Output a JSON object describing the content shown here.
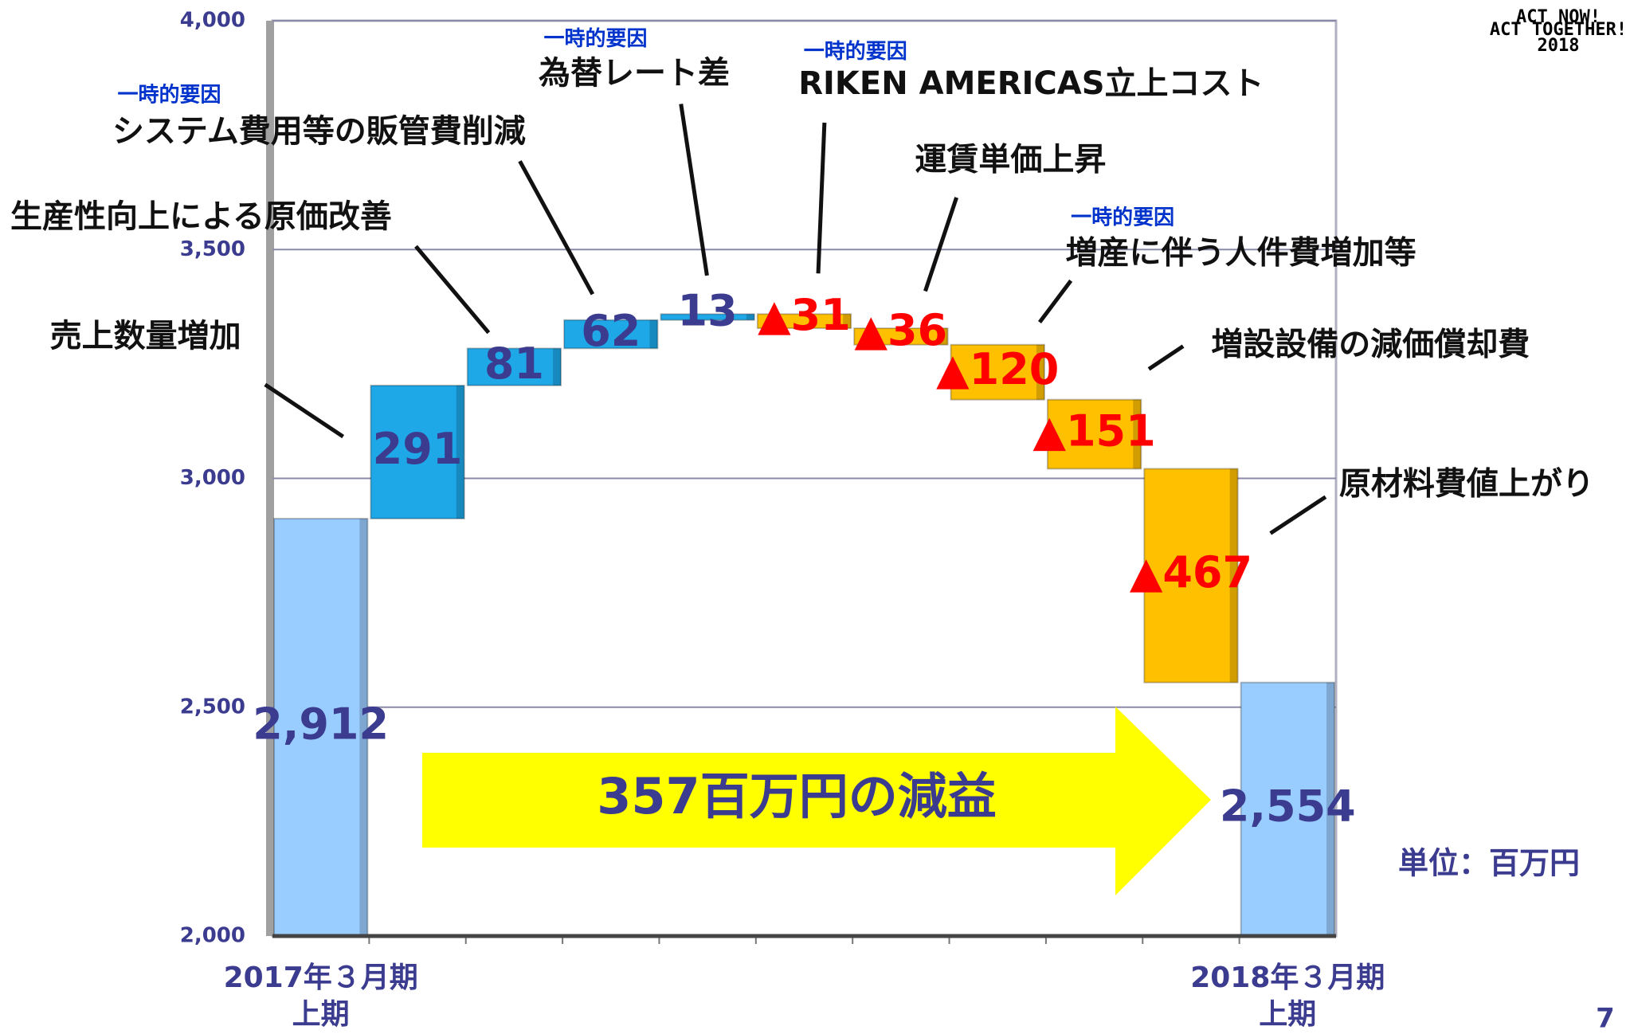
{
  "chart_data": {
    "type": "waterfall",
    "categories": [
      "2017年３月期\n上期",
      null,
      null,
      null,
      null,
      null,
      null,
      null,
      null,
      null,
      "2018年３月期\n上期"
    ],
    "measure": [
      "absolute",
      "relative",
      "relative",
      "relative",
      "relative",
      "relative",
      "relative",
      "relative",
      "relative",
      "relative",
      "absolute"
    ],
    "values": [
      2912,
      291,
      81,
      62,
      13,
      -31,
      -36,
      -120,
      -151,
      -467,
      2554
    ],
    "value_labels": [
      "2,912",
      "291",
      "81",
      "62",
      "13",
      "▲31",
      "▲36",
      "▲120",
      "▲151",
      "▲467",
      "2,554"
    ],
    "colors": {
      "total": "#99ccff",
      "increase": "#1ea8e8",
      "decrease": "#ffc000"
    },
    "label_colors": {
      "positive": "#3b3b8f",
      "negative": "#ff0000"
    },
    "ylim": [
      2000,
      4000
    ],
    "yticks": [
      {
        "value": 2000,
        "label": "2,000"
      },
      {
        "value": 2500,
        "label": "2,500"
      },
      {
        "value": 3000,
        "label": "3,000"
      },
      {
        "value": 3500,
        "label": "3,500"
      },
      {
        "value": 4000,
        "label": "4,000"
      }
    ],
    "grid": true,
    "factors": [
      {
        "label": "売上数量増加"
      },
      {
        "label": "生産性向上による原価改善"
      },
      {
        "tag": "一時的要因",
        "label": "システム費用等の販管費削減"
      },
      {
        "tag": "一時的要因",
        "label": "為替レート差"
      },
      {
        "tag": "一時的要因",
        "label": "RIKEN AMERICAS立上コスト"
      },
      {
        "label": "運賃単価上昇"
      },
      {
        "tag": "一時的要因",
        "label": "増産に伴う人件費増加等"
      },
      {
        "label": "増設設備の減価償却費"
      },
      {
        "label": "原材料費値上がり"
      }
    ],
    "arrow_text": "357百万円の減益",
    "unit": "単位：百万円"
  },
  "logo": [
    "ACT NOW!",
    "ACT TOGETHER!",
    "2018"
  ],
  "page_number": "7"
}
